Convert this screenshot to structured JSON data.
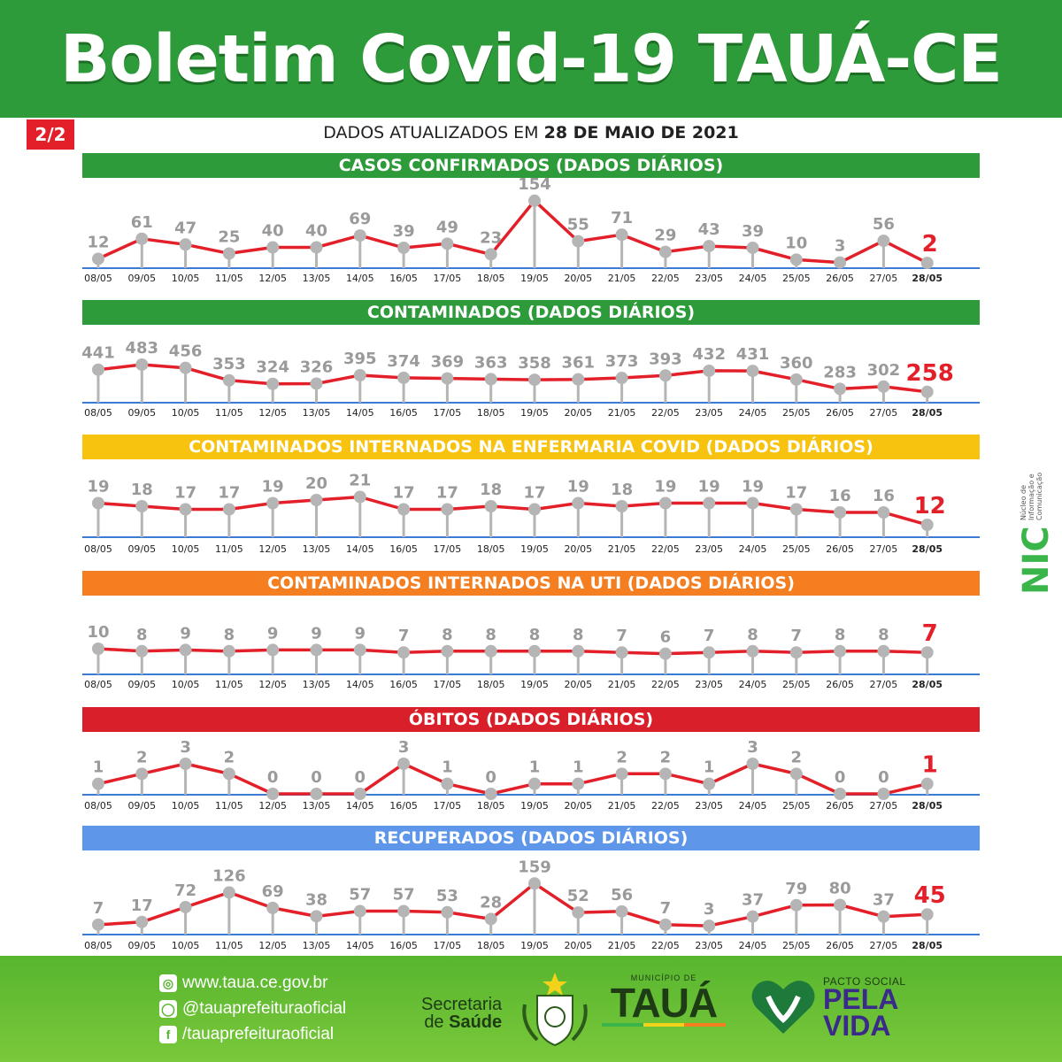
{
  "header": {
    "title": "Boletim Covid-19 TAUÁ-CE"
  },
  "page_badge": "2/2",
  "updated": {
    "prefix": "DADOS ATUALIZADOS EM ",
    "date": "28 DE MAIO DE 2021"
  },
  "colors": {
    "header_green": "#2e9b3a",
    "line_red": "#e3202a",
    "point_gray": "#b5b5b5",
    "label_gray": "#9a9a9a",
    "axis_blue": "#3a7bd5",
    "highlight_red": "#e3202a"
  },
  "sidebar_logo": {
    "name": "NIC",
    "text": [
      "Núcleo de",
      "Informação e",
      "Comunicação"
    ]
  },
  "footer": {
    "website": "www.taua.ce.gov.br",
    "instagram": "@tauaprefeituraoficial",
    "facebook": "/tauaprefeituraoficial",
    "secretaria_line1": "Secretaria",
    "secretaria_line2_prefix": "de ",
    "secretaria_line2_bold": "Saúde",
    "municipio_small": "MUNICÍPIO DE",
    "municipio_big": "TAUÁ",
    "pacto_small": "PACTO SOCIAL",
    "pacto_big1": "PELA",
    "pacto_big2": "VIDA",
    "icons": [
      "globe-icon",
      "instagram-icon",
      "facebook-icon"
    ]
  },
  "chart_data": [
    {
      "type": "line",
      "title": "CASOS CONFIRMADOS  (DADOS DIÁRIOS)",
      "band_color": "#2e9b3a",
      "categories": [
        "08/05",
        "09/05",
        "10/05",
        "11/05",
        "12/05",
        "13/05",
        "14/05",
        "16/05",
        "17/05",
        "18/05",
        "19/05",
        "20/05",
        "21/05",
        "22/05",
        "23/05",
        "24/05",
        "25/05",
        "26/05",
        "27/05",
        "28/05"
      ],
      "values": [
        12,
        61,
        47,
        25,
        40,
        40,
        69,
        39,
        49,
        23,
        154,
        55,
        71,
        29,
        43,
        39,
        10,
        3,
        56,
        2
      ],
      "ylim": [
        0,
        160
      ]
    },
    {
      "type": "line",
      "title": "CONTAMINADOS  (DADOS DIÁRIOS)",
      "band_color": "#2e9b3a",
      "categories": [
        "08/05",
        "09/05",
        "10/05",
        "11/05",
        "12/05",
        "13/05",
        "14/05",
        "16/05",
        "17/05",
        "18/05",
        "19/05",
        "20/05",
        "21/05",
        "22/05",
        "23/05",
        "24/05",
        "25/05",
        "26/05",
        "27/05",
        "28/05"
      ],
      "values": [
        441,
        483,
        456,
        353,
        324,
        326,
        395,
        374,
        369,
        363,
        358,
        361,
        373,
        393,
        432,
        431,
        360,
        283,
        302,
        258
      ],
      "ylim": [
        220,
        490
      ]
    },
    {
      "type": "line",
      "title": "CONTAMINADOS INTERNADOS NA ENFERMARIA COVID  (DADOS DIÁRIOS)",
      "band_color": "#f7c30f",
      "categories": [
        "08/05",
        "09/05",
        "10/05",
        "11/05",
        "12/05",
        "13/05",
        "14/05",
        "16/05",
        "17/05",
        "18/05",
        "19/05",
        "20/05",
        "21/05",
        "22/05",
        "23/05",
        "24/05",
        "25/05",
        "26/05",
        "27/05",
        "28/05"
      ],
      "values": [
        19,
        18,
        17,
        17,
        19,
        20,
        21,
        17,
        17,
        18,
        17,
        19,
        18,
        19,
        19,
        19,
        17,
        16,
        16,
        12
      ],
      "ylim": [
        10,
        22
      ]
    },
    {
      "type": "line",
      "title": "CONTAMINADOS INTERNADOS NA UTI  (DADOS DIÁRIOS)",
      "band_color": "#f47e20",
      "categories": [
        "08/05",
        "09/05",
        "10/05",
        "11/05",
        "12/05",
        "13/05",
        "14/05",
        "16/05",
        "17/05",
        "18/05",
        "19/05",
        "20/05",
        "21/05",
        "22/05",
        "23/05",
        "24/05",
        "25/05",
        "26/05",
        "27/05",
        "28/05"
      ],
      "values": [
        10,
        8,
        9,
        8,
        9,
        9,
        9,
        7,
        8,
        8,
        8,
        8,
        7,
        6,
        7,
        8,
        7,
        8,
        8,
        7
      ],
      "ylim": [
        0,
        10
      ]
    },
    {
      "type": "line",
      "title": "ÓBITOS  (DADOS DIÁRIOS)",
      "band_color": "#d9202a",
      "categories": [
        "08/05",
        "09/05",
        "10/05",
        "11/05",
        "12/05",
        "13/05",
        "14/05",
        "16/05",
        "17/05",
        "18/05",
        "19/05",
        "20/05",
        "21/05",
        "22/05",
        "23/05",
        "24/05",
        "25/05",
        "26/05",
        "27/05",
        "28/05"
      ],
      "values": [
        1,
        2,
        3,
        2,
        0,
        0,
        0,
        3,
        1,
        0,
        1,
        1,
        2,
        2,
        1,
        3,
        2,
        0,
        0,
        1
      ],
      "ylim": [
        0,
        3
      ]
    },
    {
      "type": "line",
      "title": "RECUPERADOS (DADOS DIÁRIOS)",
      "band_color": "#5e96ea",
      "categories": [
        "08/05",
        "09/05",
        "10/05",
        "11/05",
        "12/05",
        "13/05",
        "14/05",
        "16/05",
        "17/05",
        "18/05",
        "19/05",
        "20/05",
        "21/05",
        "22/05",
        "23/05",
        "24/05",
        "25/05",
        "26/05",
        "27/05",
        "28/05"
      ],
      "values": [
        7,
        17,
        72,
        126,
        69,
        38,
        57,
        57,
        53,
        28,
        159,
        52,
        56,
        7,
        3,
        37,
        79,
        80,
        37,
        45
      ],
      "ylim": [
        0,
        160
      ]
    }
  ]
}
